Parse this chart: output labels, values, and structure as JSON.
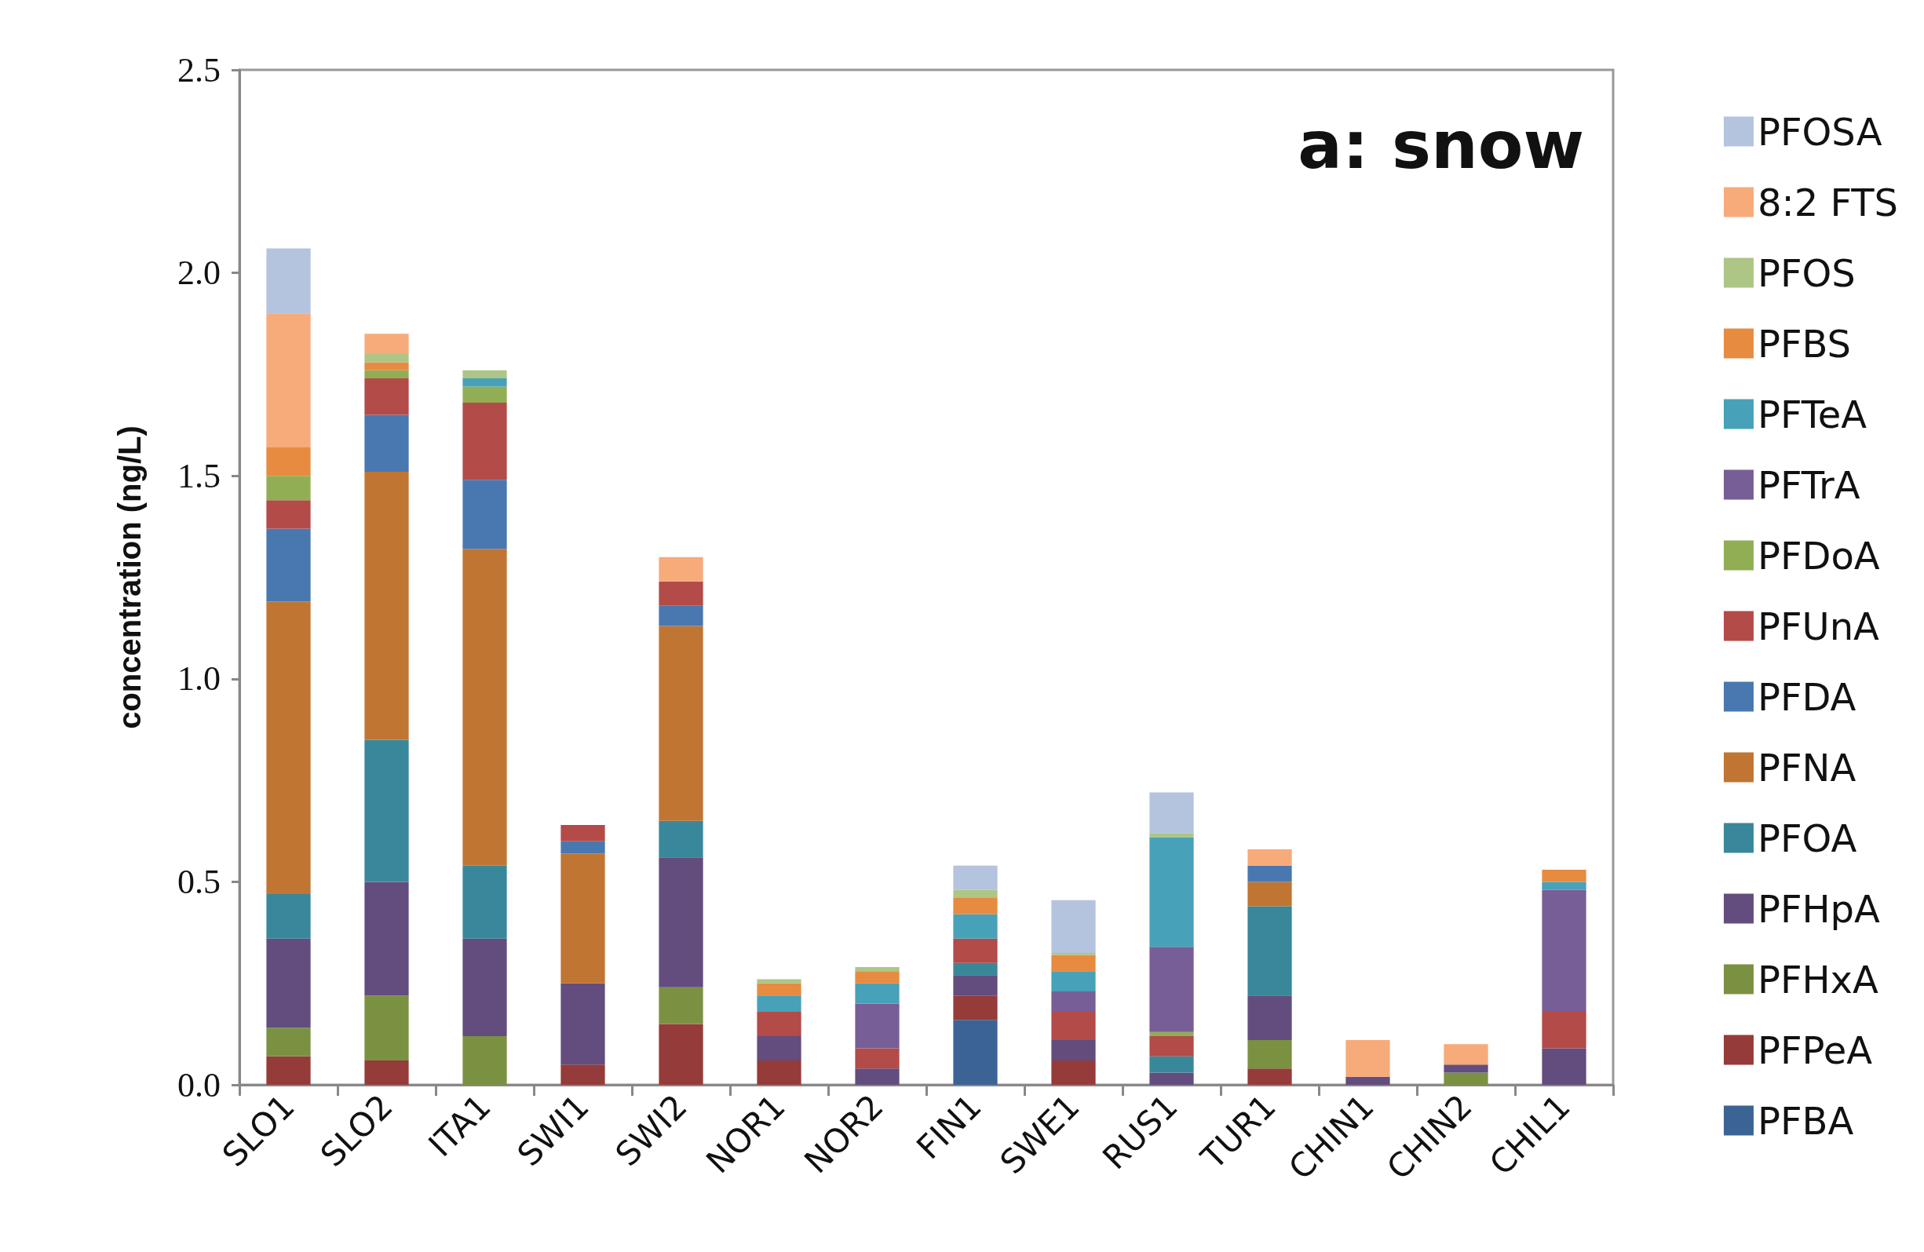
{
  "chart_data": {
    "type": "bar",
    "stacked": true,
    "title": "a: snow",
    "ylabel": "concentration (ng/L)",
    "categories": [
      "SLO1",
      "SLO2",
      "ITA1",
      "SWI1",
      "SWI2",
      "NOR1",
      "NOR2",
      "FIN1",
      "SWE1",
      "RUS1",
      "TUR1",
      "CHIN1",
      "CHIN2",
      "CHIL1"
    ],
    "ylim": [
      0,
      2.5
    ],
    "yticks": [
      {
        "value": 0,
        "label": "0.0"
      },
      0.5,
      {
        "value": 1,
        "label": "1.0"
      },
      1.5,
      {
        "value": 2,
        "label": "2.0"
      },
      2.5
    ],
    "grid": false,
    "legend": "right",
    "series": [
      {
        "name": "PFBA",
        "color": "#3b6495",
        "values": [
          null,
          null,
          null,
          null,
          null,
          null,
          null,
          0.16,
          null,
          null,
          null,
          null,
          null,
          null
        ]
      },
      {
        "name": "PFPeA",
        "color": "#953b39",
        "values": [
          0.07,
          0.06,
          null,
          0.05,
          0.15,
          0.06,
          null,
          0.06,
          0.06,
          null,
          0.04,
          null,
          null,
          null
        ]
      },
      {
        "name": "PFHxA",
        "color": "#7b9142",
        "values": [
          0.07,
          0.16,
          0.12,
          null,
          0.09,
          null,
          null,
          null,
          null,
          null,
          0.07,
          null,
          0.03,
          null
        ]
      },
      {
        "name": "PFHpA",
        "color": "#624d7e",
        "values": [
          0.22,
          0.28,
          0.24,
          0.2,
          0.32,
          0.06,
          0.04,
          0.05,
          0.05,
          0.03,
          0.11,
          0.02,
          0.02,
          0.09
        ]
      },
      {
        "name": "PFOA",
        "color": "#39879a",
        "values": [
          0.11,
          0.35,
          0.18,
          null,
          0.09,
          null,
          null,
          0.03,
          null,
          0.04,
          0.22,
          null,
          null,
          null
        ]
      },
      {
        "name": "PFNA",
        "color": "#c07533",
        "values": [
          0.72,
          0.66,
          0.78,
          0.32,
          0.48,
          null,
          null,
          null,
          null,
          null,
          0.06,
          null,
          null,
          null
        ]
      },
      {
        "name": "PFDA",
        "color": "#4978b0",
        "values": [
          0.18,
          0.14,
          0.17,
          0.03,
          0.05,
          null,
          null,
          null,
          null,
          null,
          0.04,
          null,
          null,
          null
        ]
      },
      {
        "name": "PFUnA",
        "color": "#b34b48",
        "values": [
          0.07,
          0.09,
          0.19,
          0.04,
          0.06,
          0.06,
          0.05,
          0.06,
          0.07,
          0.05,
          null,
          null,
          null,
          0.09
        ]
      },
      {
        "name": "PFDoA",
        "color": "#92ae55",
        "values": [
          0.06,
          0.02,
          0.04,
          null,
          null,
          null,
          null,
          null,
          null,
          0.01,
          null,
          null,
          null,
          null
        ]
      },
      {
        "name": "PFTrA",
        "color": "#785e96",
        "values": [
          null,
          null,
          null,
          null,
          null,
          null,
          0.11,
          null,
          0.05,
          0.21,
          null,
          null,
          null,
          0.3
        ]
      },
      {
        "name": "PFTeA",
        "color": "#47a1b9",
        "values": [
          null,
          null,
          0.02,
          null,
          null,
          0.04,
          0.05,
          0.06,
          0.05,
          0.27,
          null,
          null,
          null,
          0.02
        ]
      },
      {
        "name": "PFBS",
        "color": "#e68b40",
        "values": [
          0.07,
          0.02,
          null,
          null,
          null,
          0.03,
          0.03,
          0.04,
          0.04,
          null,
          null,
          null,
          null,
          0.03
        ]
      },
      {
        "name": "PFOS",
        "color": "#adc585",
        "values": [
          null,
          0.02,
          0.02,
          null,
          null,
          0.01,
          0.01,
          0.02,
          0.005,
          0.01,
          null,
          null,
          null,
          null
        ]
      },
      {
        "name": "8:2 FTS",
        "color": "#f7aa7a",
        "values": [
          0.33,
          0.05,
          null,
          null,
          0.06,
          null,
          null,
          null,
          null,
          null,
          0.04,
          0.09,
          0.05,
          null
        ]
      },
      {
        "name": "PFOSA",
        "color": "#b4c4de",
        "values": [
          0.16,
          null,
          null,
          null,
          null,
          null,
          null,
          0.06,
          0.13,
          0.1,
          null,
          null,
          null,
          null
        ]
      }
    ]
  }
}
